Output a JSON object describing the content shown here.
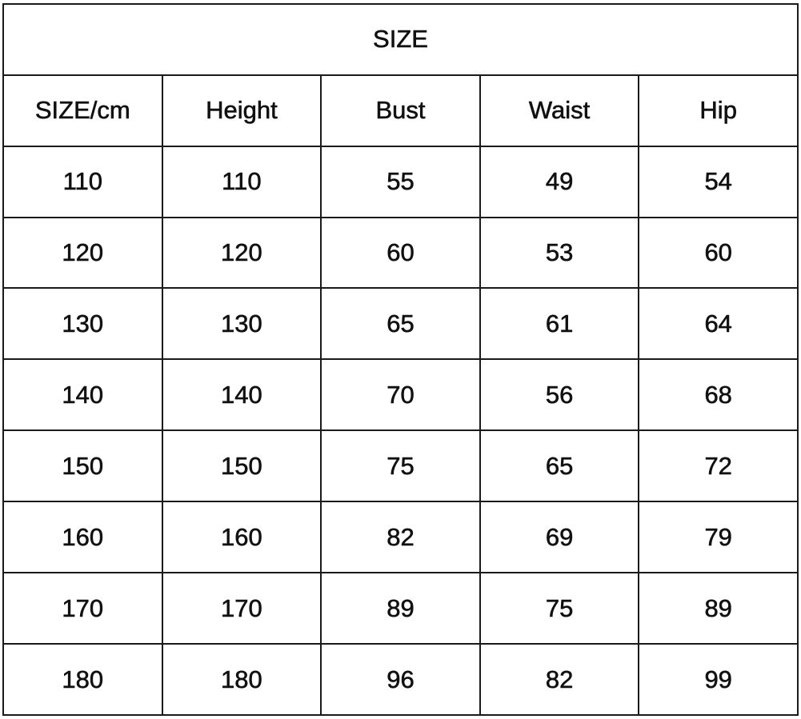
{
  "title": "SIZE",
  "columns": [
    "SIZE/cm",
    "Height",
    "Bust",
    "Waist",
    "Hip"
  ],
  "rows": [
    [
      "110",
      "110",
      "55",
      "49",
      "54"
    ],
    [
      "120",
      "120",
      "60",
      "53",
      "60"
    ],
    [
      "130",
      "130",
      "65",
      "61",
      "64"
    ],
    [
      "140",
      "140",
      "70",
      "56",
      "68"
    ],
    [
      "150",
      "150",
      "75",
      "65",
      "72"
    ],
    [
      "160",
      "160",
      "82",
      "69",
      "79"
    ],
    [
      "170",
      "170",
      "89",
      "75",
      "89"
    ],
    [
      "180",
      "180",
      "96",
      "82",
      "99"
    ]
  ]
}
